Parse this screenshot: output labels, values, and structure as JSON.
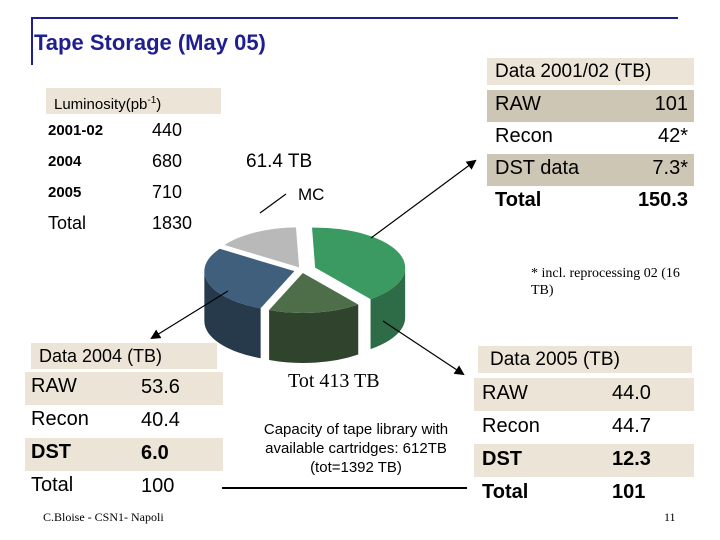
{
  "slide": {
    "title": "Tape Storage (May 05)",
    "footer": "C.Bloise - CSN1- Napoli",
    "page_number": "11"
  },
  "luminosity": {
    "header": "Luminosity(pb",
    "header_sup": "-1",
    "header_close": ")",
    "rows": [
      {
        "label": "2001-02",
        "value": "440"
      },
      {
        "label": "2004",
        "value": "680"
      },
      {
        "label": "2005",
        "value": "710"
      },
      {
        "label": "Total",
        "value": "1830"
      }
    ]
  },
  "pie": {
    "label_61": "61.4  TB",
    "label_mc": "MC",
    "total_label": "Tot 413 TB",
    "capacity_text": "Capacity of tape library with available cartridges: 612TB (tot=1392 TB)",
    "colors": {
      "green": "#3a9a62",
      "green_dark": "#2e6b47",
      "olive": "#4e6e4a",
      "olive_dark": "#2f432d",
      "blue": "#3f5f7c",
      "blue_dark": "#263a4c",
      "grey": "#b9b9b9",
      "grey_dark": "#8a8a8a"
    }
  },
  "data_2001": {
    "header": "Data 2001/02 (TB)",
    "rows": [
      {
        "label": "RAW",
        "value": "101"
      },
      {
        "label": "Recon",
        "value": "42*"
      },
      {
        "label": "DST data",
        "value": "7.3*"
      },
      {
        "label": "Total",
        "value": "150.3"
      }
    ],
    "note": "* incl. reprocessing 02 (16 TB)"
  },
  "data_2004": {
    "header": "Data 2004 (TB)",
    "rows": [
      {
        "label": "RAW",
        "value": "53.6"
      },
      {
        "label": "Recon",
        "value": "40.4"
      },
      {
        "label": "DST",
        "value": "6.0"
      },
      {
        "label": "Total",
        "value": "100"
      }
    ]
  },
  "data_2005": {
    "header": "Data 2005 (TB)",
    "rows": [
      {
        "label": "RAW",
        "value": "44.0"
      },
      {
        "label": "Recon",
        "value": "44.7"
      },
      {
        "label": "DST",
        "value": "12.3"
      },
      {
        "label": "Total",
        "value": "101"
      }
    ]
  }
}
